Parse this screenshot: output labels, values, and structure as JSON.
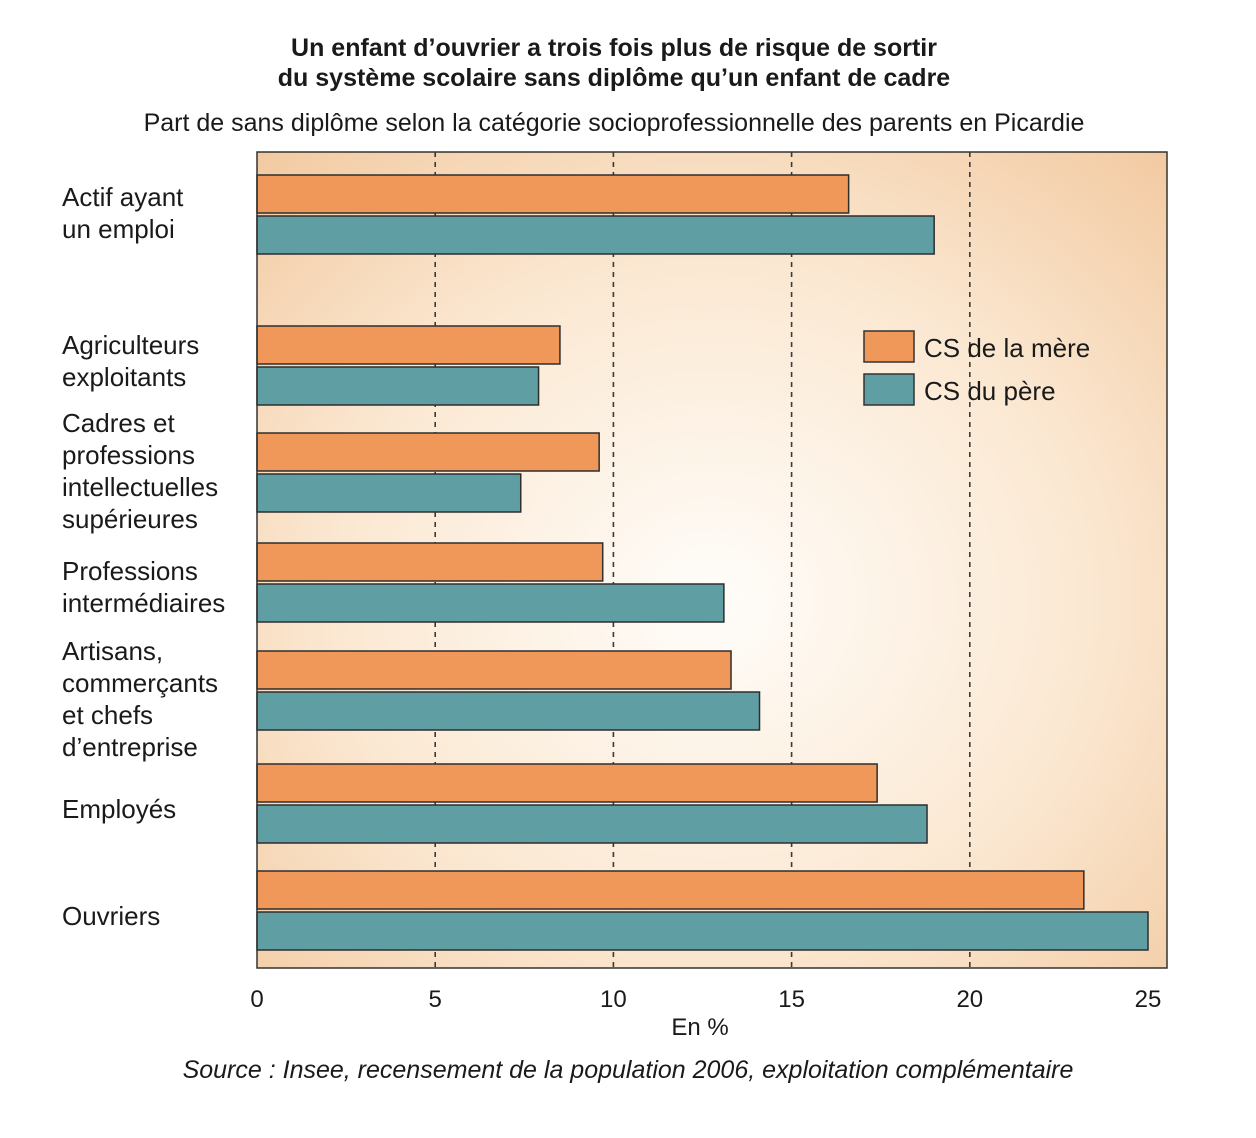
{
  "chart_data": {
    "type": "bar",
    "orientation": "horizontal",
    "title": [
      "Un enfant d’ouvrier a trois fois plus de risque de sortir",
      "du système scolaire sans diplôme qu’un enfant de cadre"
    ],
    "subtitle": "Part de sans diplôme selon la catégorie socioprofessionnelle des parents en Picardie",
    "xlabel": "En %",
    "ylabel": "",
    "xlim": [
      0,
      25
    ],
    "xticks": [
      0,
      5,
      10,
      15,
      20,
      25
    ],
    "grid": "vertical-dashed",
    "legend_position": "right-middle",
    "categories": [
      [
        "Actif ayant",
        "un emploi"
      ],
      [
        "Agriculteurs",
        "exploitants"
      ],
      [
        "Cadres et",
        "professions",
        "intellectuelles",
        "supérieures"
      ],
      [
        "Professions",
        "intermédiaires"
      ],
      [
        "Artisans,",
        "commerçants",
        "et chefs",
        "d’entreprise"
      ],
      [
        "Employés"
      ],
      [
        "Ouvriers"
      ]
    ],
    "series": [
      {
        "name": "CS de la mère",
        "color": "#f0975a",
        "values": [
          16.6,
          8.5,
          9.6,
          9.7,
          13.3,
          17.4,
          23.2
        ]
      },
      {
        "name": "CS du père",
        "color": "#5f9ea3",
        "values": [
          19.0,
          7.9,
          7.4,
          13.1,
          14.1,
          18.8,
          25.0
        ]
      }
    ],
    "source": "Source : Insee, recensement de la population 2006, exploitation complémentaire"
  }
}
